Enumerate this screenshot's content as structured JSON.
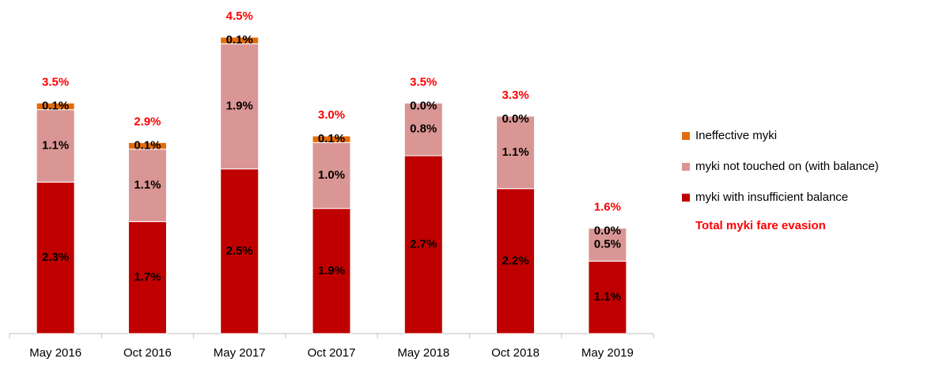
{
  "chart_data": {
    "type": "stacked_bar",
    "categories": [
      "May 2016",
      "Oct 2016",
      "May 2017",
      "Oct 2017",
      "May 2018",
      "Oct 2018",
      "May 2019"
    ],
    "series": [
      {
        "name": "myki with insufficient balance",
        "color": "#c00000",
        "values": [
          2.3,
          1.7,
          2.5,
          1.9,
          2.7,
          2.2,
          1.1
        ],
        "value_labels": [
          "2.3%",
          "1.7%",
          "2.5%",
          "1.9%",
          "2.7%",
          "2.2%",
          "1.1%"
        ]
      },
      {
        "name": "myki not touched on (with balance)",
        "color": "#da9694",
        "values": [
          1.1,
          1.1,
          1.9,
          1.0,
          0.8,
          1.1,
          0.5
        ],
        "value_labels": [
          "1.1%",
          "1.1%",
          "1.9%",
          "1.0%",
          "0.8%",
          "1.1%",
          "0.5%"
        ]
      },
      {
        "name": "Ineffective myki",
        "color": "#e46c0a",
        "values": [
          0.1,
          0.1,
          0.1,
          0.1,
          0.0,
          0.0,
          0.0
        ],
        "value_labels": [
          "0.1%",
          "0.1%",
          "0.1%",
          "0.1%",
          "0.0%",
          "0.0%",
          "0.0%"
        ]
      }
    ],
    "totals": {
      "name": "Total myki fare evasion",
      "color": "#ff0000",
      "values": [
        3.5,
        2.9,
        4.5,
        3.0,
        3.5,
        3.3,
        1.6
      ],
      "value_labels": [
        "3.5%",
        "2.9%",
        "4.5%",
        "3.0%",
        "3.5%",
        "3.3%",
        "1.6%"
      ]
    }
  }
}
